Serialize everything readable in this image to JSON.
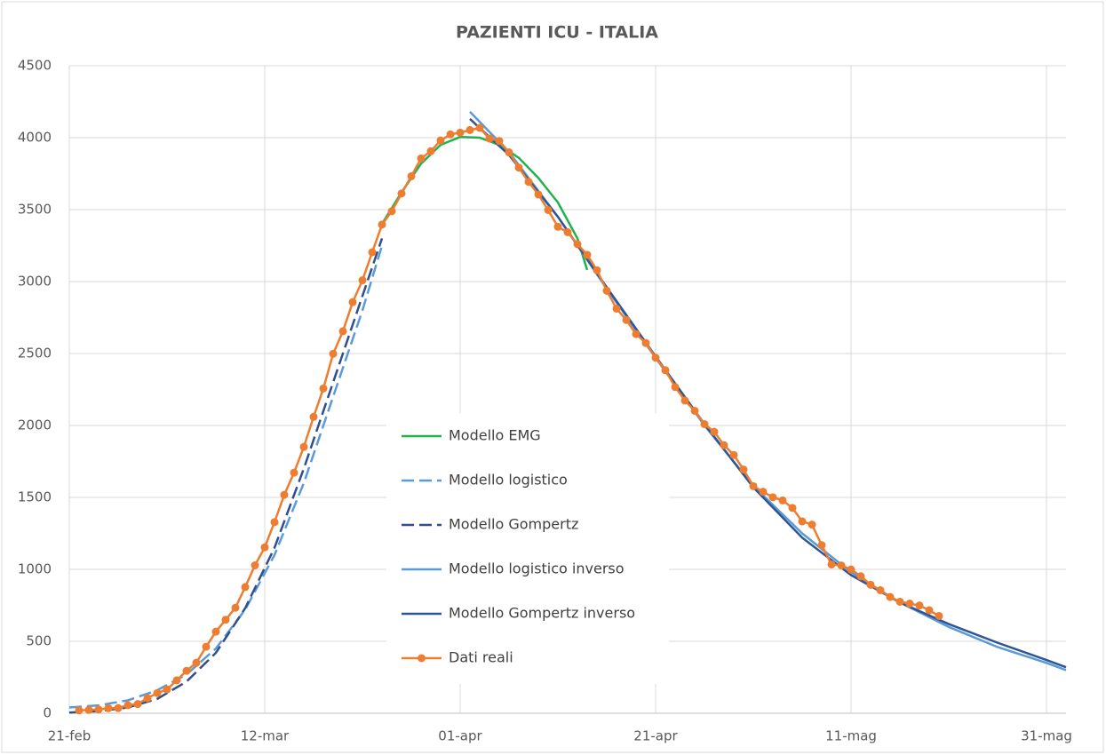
{
  "chart_data": {
    "type": "line",
    "title": "PAZIENTI ICU - ITALIA",
    "xlim": [
      0,
      102
    ],
    "xticks": [
      {
        "value": 0,
        "label": "21-feb"
      },
      {
        "value": 20,
        "label": "12-mar"
      },
      {
        "value": 40,
        "label": "01-apr"
      },
      {
        "value": 60,
        "label": "21-apr"
      },
      {
        "value": 80,
        "label": "11-mag"
      },
      {
        "value": 100,
        "label": "31-mag"
      }
    ],
    "ylim": [
      0,
      4500
    ],
    "yticks": [
      0,
      500,
      1000,
      1500,
      2000,
      2500,
      3000,
      3500,
      4000,
      4500
    ],
    "grid": true,
    "legend": "center",
    "series": [
      {
        "name": "Modello EMG",
        "color": "#22b14c",
        "dash": false,
        "markers": false,
        "x": [
          32,
          34,
          36,
          38,
          40,
          42,
          44,
          46,
          48,
          50,
          52,
          53
        ],
        "values": [
          3400,
          3620,
          3820,
          3950,
          4005,
          4000,
          3950,
          3860,
          3720,
          3550,
          3300,
          3080
        ]
      },
      {
        "name": "Modello logistico",
        "color": "#5b9bd5",
        "dash": true,
        "markers": false,
        "x": [
          0,
          3,
          6,
          9,
          12,
          15,
          18,
          21,
          24,
          27,
          30,
          32
        ],
        "values": [
          40,
          55,
          90,
          160,
          270,
          450,
          720,
          1100,
          1600,
          2200,
          2800,
          3250
        ]
      },
      {
        "name": "Modello Gompertz",
        "color": "#2f4f8f",
        "dash": true,
        "markers": false,
        "x": [
          0,
          3,
          6,
          9,
          12,
          15,
          18,
          21,
          24,
          27,
          30,
          32
        ],
        "values": [
          5,
          15,
          40,
          100,
          220,
          420,
          730,
          1150,
          1700,
          2300,
          2900,
          3300
        ]
      },
      {
        "name": "Modello logistico inverso",
        "color": "#5b9bd5",
        "dash": false,
        "markers": false,
        "x": [
          41,
          45,
          50,
          55,
          60,
          65,
          70,
          75,
          80,
          85,
          90,
          95,
          100,
          102
        ],
        "values": [
          4180,
          3900,
          3450,
          2950,
          2470,
          2000,
          1580,
          1250,
          980,
          770,
          600,
          460,
          350,
          300
        ]
      },
      {
        "name": "Modello Gompertz inverso",
        "color": "#2f5597",
        "dash": false,
        "markers": false,
        "x": [
          41,
          45,
          50,
          55,
          60,
          65,
          70,
          75,
          80,
          85,
          90,
          95,
          100,
          102
        ],
        "values": [
          4130,
          3880,
          3450,
          2960,
          2480,
          2010,
          1570,
          1220,
          960,
          770,
          620,
          490,
          370,
          320
        ]
      },
      {
        "name": "Dati reali",
        "color": "#ed7d31",
        "dash": false,
        "markers": true,
        "x": [
          1,
          2,
          3,
          4,
          5,
          6,
          7,
          8,
          9,
          10,
          11,
          12,
          13,
          14,
          15,
          16,
          17,
          18,
          19,
          20,
          21,
          22,
          23,
          24,
          25,
          26,
          27,
          28,
          29,
          30,
          31,
          32,
          33,
          34,
          35,
          36,
          37,
          38,
          39,
          40,
          41,
          42,
          43,
          44,
          45,
          46,
          47,
          48,
          49,
          50,
          51,
          52,
          53,
          54,
          55,
          56,
          57,
          58,
          59,
          60,
          61,
          62,
          63,
          64,
          65,
          66,
          67,
          68,
          69,
          70,
          71,
          72,
          73,
          74,
          75,
          76,
          77,
          78,
          79,
          80,
          81,
          82,
          83,
          84,
          85,
          86,
          87,
          88,
          89
        ],
        "values": [
          20,
          23,
          26,
          35,
          36,
          56,
          64,
          105,
          140,
          166,
          229,
          295,
          351,
          462,
          567,
          650,
          733,
          877,
          1028,
          1153,
          1328,
          1518,
          1672,
          1851,
          2060,
          2257,
          2498,
          2655,
          2857,
          3009,
          3204,
          3396,
          3489,
          3612,
          3732,
          3856,
          3906,
          3981,
          4023,
          4035,
          4053,
          4068,
          3994,
          3977,
          3898,
          3792,
          3693,
          3605,
          3497,
          3381,
          3343,
          3260,
          3186,
          3079,
          2936,
          2812,
          2733,
          2635,
          2573,
          2471,
          2384,
          2267,
          2173,
          2102,
          2009,
          1956,
          1863,
          1795,
          1694,
          1578,
          1539,
          1501,
          1479,
          1427,
          1333,
          1311,
          1168,
          1034,
          1027,
          999,
          952,
          893,
          855,
          808,
          775,
          762,
          749,
          716,
          676
        ]
      }
    ]
  }
}
